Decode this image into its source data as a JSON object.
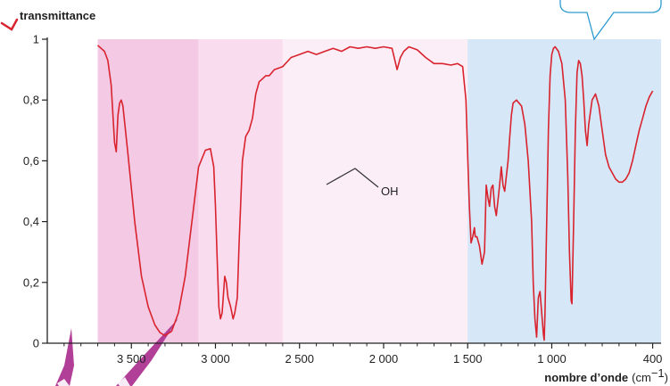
{
  "chart_data": {
    "type": "line",
    "ylabel": "transmittance",
    "xlabel": "nombre d’onde",
    "xunit": "(cm",
    "xunit_exp": "−1",
    "xunit_close": ")",
    "x_reversed": true,
    "xlim": [
      4000,
      350
    ],
    "ylim": [
      0,
      1
    ],
    "xticks": [
      3500,
      3000,
      2500,
      2000,
      1500,
      1000,
      400
    ],
    "xtick_labels": [
      "3 500",
      "3 000",
      "2 500",
      "2 000",
      "1 500",
      "1 000",
      "400"
    ],
    "yticks": [
      0,
      0.2,
      0.4,
      0.6,
      0.8,
      1
    ],
    "ytick_labels": [
      "0",
      "0,2",
      "0,4",
      "0,6",
      "0,8",
      "1"
    ],
    "grid": false,
    "regions": [
      {
        "x_from": 3700,
        "x_to": 3100,
        "color": "#f3c9e3"
      },
      {
        "x_from": 3100,
        "x_to": 2600,
        "color": "#f9dcee"
      },
      {
        "x_from": 2600,
        "x_to": 1500,
        "color": "#fbeef6"
      },
      {
        "x_from": 1500,
        "x_to": 350,
        "color": "#d6e7f7"
      }
    ],
    "molecule_label": "OH",
    "line_color": "#d9232e",
    "series": [
      {
        "x": [
          3700,
          3680,
          3660,
          3640,
          3620,
          3600,
          3590,
          3580,
          3570,
          3560,
          3550,
          3520,
          3480,
          3440,
          3400,
          3360,
          3330,
          3300,
          3260,
          3220,
          3180,
          3140,
          3100,
          3060,
          3030,
          3010,
          3000,
          2990,
          2980,
          2970,
          2960,
          2945,
          2935,
          2925,
          2910,
          2895,
          2885,
          2870,
          2860,
          2840,
          2820,
          2800,
          2780,
          2760,
          2740,
          2720,
          2700,
          2680,
          2650,
          2600,
          2550,
          2500,
          2450,
          2400,
          2350,
          2300,
          2250,
          2200,
          2150,
          2100,
          2050,
          2000,
          1950,
          1920,
          1900,
          1880,
          1850,
          1800,
          1750,
          1700,
          1650,
          1600,
          1560,
          1530,
          1510,
          1500,
          1490,
          1480,
          1470,
          1460,
          1455,
          1445,
          1430,
          1415,
          1400,
          1390,
          1380,
          1370,
          1360,
          1350,
          1340,
          1330,
          1320,
          1310,
          1300,
          1290,
          1280,
          1270,
          1260,
          1250,
          1240,
          1230,
          1210,
          1180,
          1160,
          1140,
          1120,
          1110,
          1100,
          1090,
          1080,
          1070,
          1060,
          1050,
          1045,
          1040,
          1030,
          1020,
          1010,
          1000,
          990,
          980,
          960,
          940,
          920,
          905,
          895,
          885,
          880,
          870,
          860,
          850,
          840,
          830,
          820,
          810,
          800,
          790,
          780,
          760,
          740,
          720,
          700,
          680,
          660,
          640,
          620,
          600,
          580,
          560,
          540,
          520,
          500,
          480,
          460,
          440,
          420,
          400
        ],
        "values": [
          0.98,
          0.97,
          0.96,
          0.93,
          0.85,
          0.66,
          0.63,
          0.75,
          0.79,
          0.8,
          0.78,
          0.62,
          0.4,
          0.22,
          0.12,
          0.06,
          0.035,
          0.025,
          0.04,
          0.1,
          0.22,
          0.4,
          0.58,
          0.635,
          0.64,
          0.58,
          0.45,
          0.28,
          0.12,
          0.08,
          0.1,
          0.22,
          0.2,
          0.15,
          0.12,
          0.08,
          0.1,
          0.15,
          0.32,
          0.6,
          0.68,
          0.7,
          0.74,
          0.82,
          0.86,
          0.87,
          0.88,
          0.88,
          0.9,
          0.91,
          0.94,
          0.95,
          0.96,
          0.95,
          0.96,
          0.97,
          0.96,
          0.975,
          0.97,
          0.975,
          0.97,
          0.975,
          0.97,
          0.9,
          0.94,
          0.96,
          0.975,
          0.965,
          0.94,
          0.92,
          0.92,
          0.915,
          0.92,
          0.91,
          0.8,
          0.62,
          0.45,
          0.33,
          0.35,
          0.38,
          0.35,
          0.35,
          0.32,
          0.26,
          0.3,
          0.52,
          0.48,
          0.45,
          0.51,
          0.52,
          0.45,
          0.42,
          0.47,
          0.52,
          0.58,
          0.52,
          0.5,
          0.55,
          0.6,
          0.68,
          0.75,
          0.79,
          0.8,
          0.78,
          0.72,
          0.6,
          0.4,
          0.2,
          0.08,
          0.02,
          0.15,
          0.17,
          0.1,
          0.03,
          0.01,
          0.1,
          0.4,
          0.7,
          0.88,
          0.95,
          0.97,
          0.975,
          0.96,
          0.92,
          0.8,
          0.55,
          0.3,
          0.14,
          0.13,
          0.4,
          0.7,
          0.89,
          0.93,
          0.92,
          0.88,
          0.8,
          0.7,
          0.65,
          0.72,
          0.8,
          0.82,
          0.78,
          0.7,
          0.62,
          0.58,
          0.56,
          0.54,
          0.53,
          0.53,
          0.54,
          0.56,
          0.6,
          0.65,
          0.7,
          0.74,
          0.78,
          0.81,
          0.83
        ]
      }
    ]
  }
}
